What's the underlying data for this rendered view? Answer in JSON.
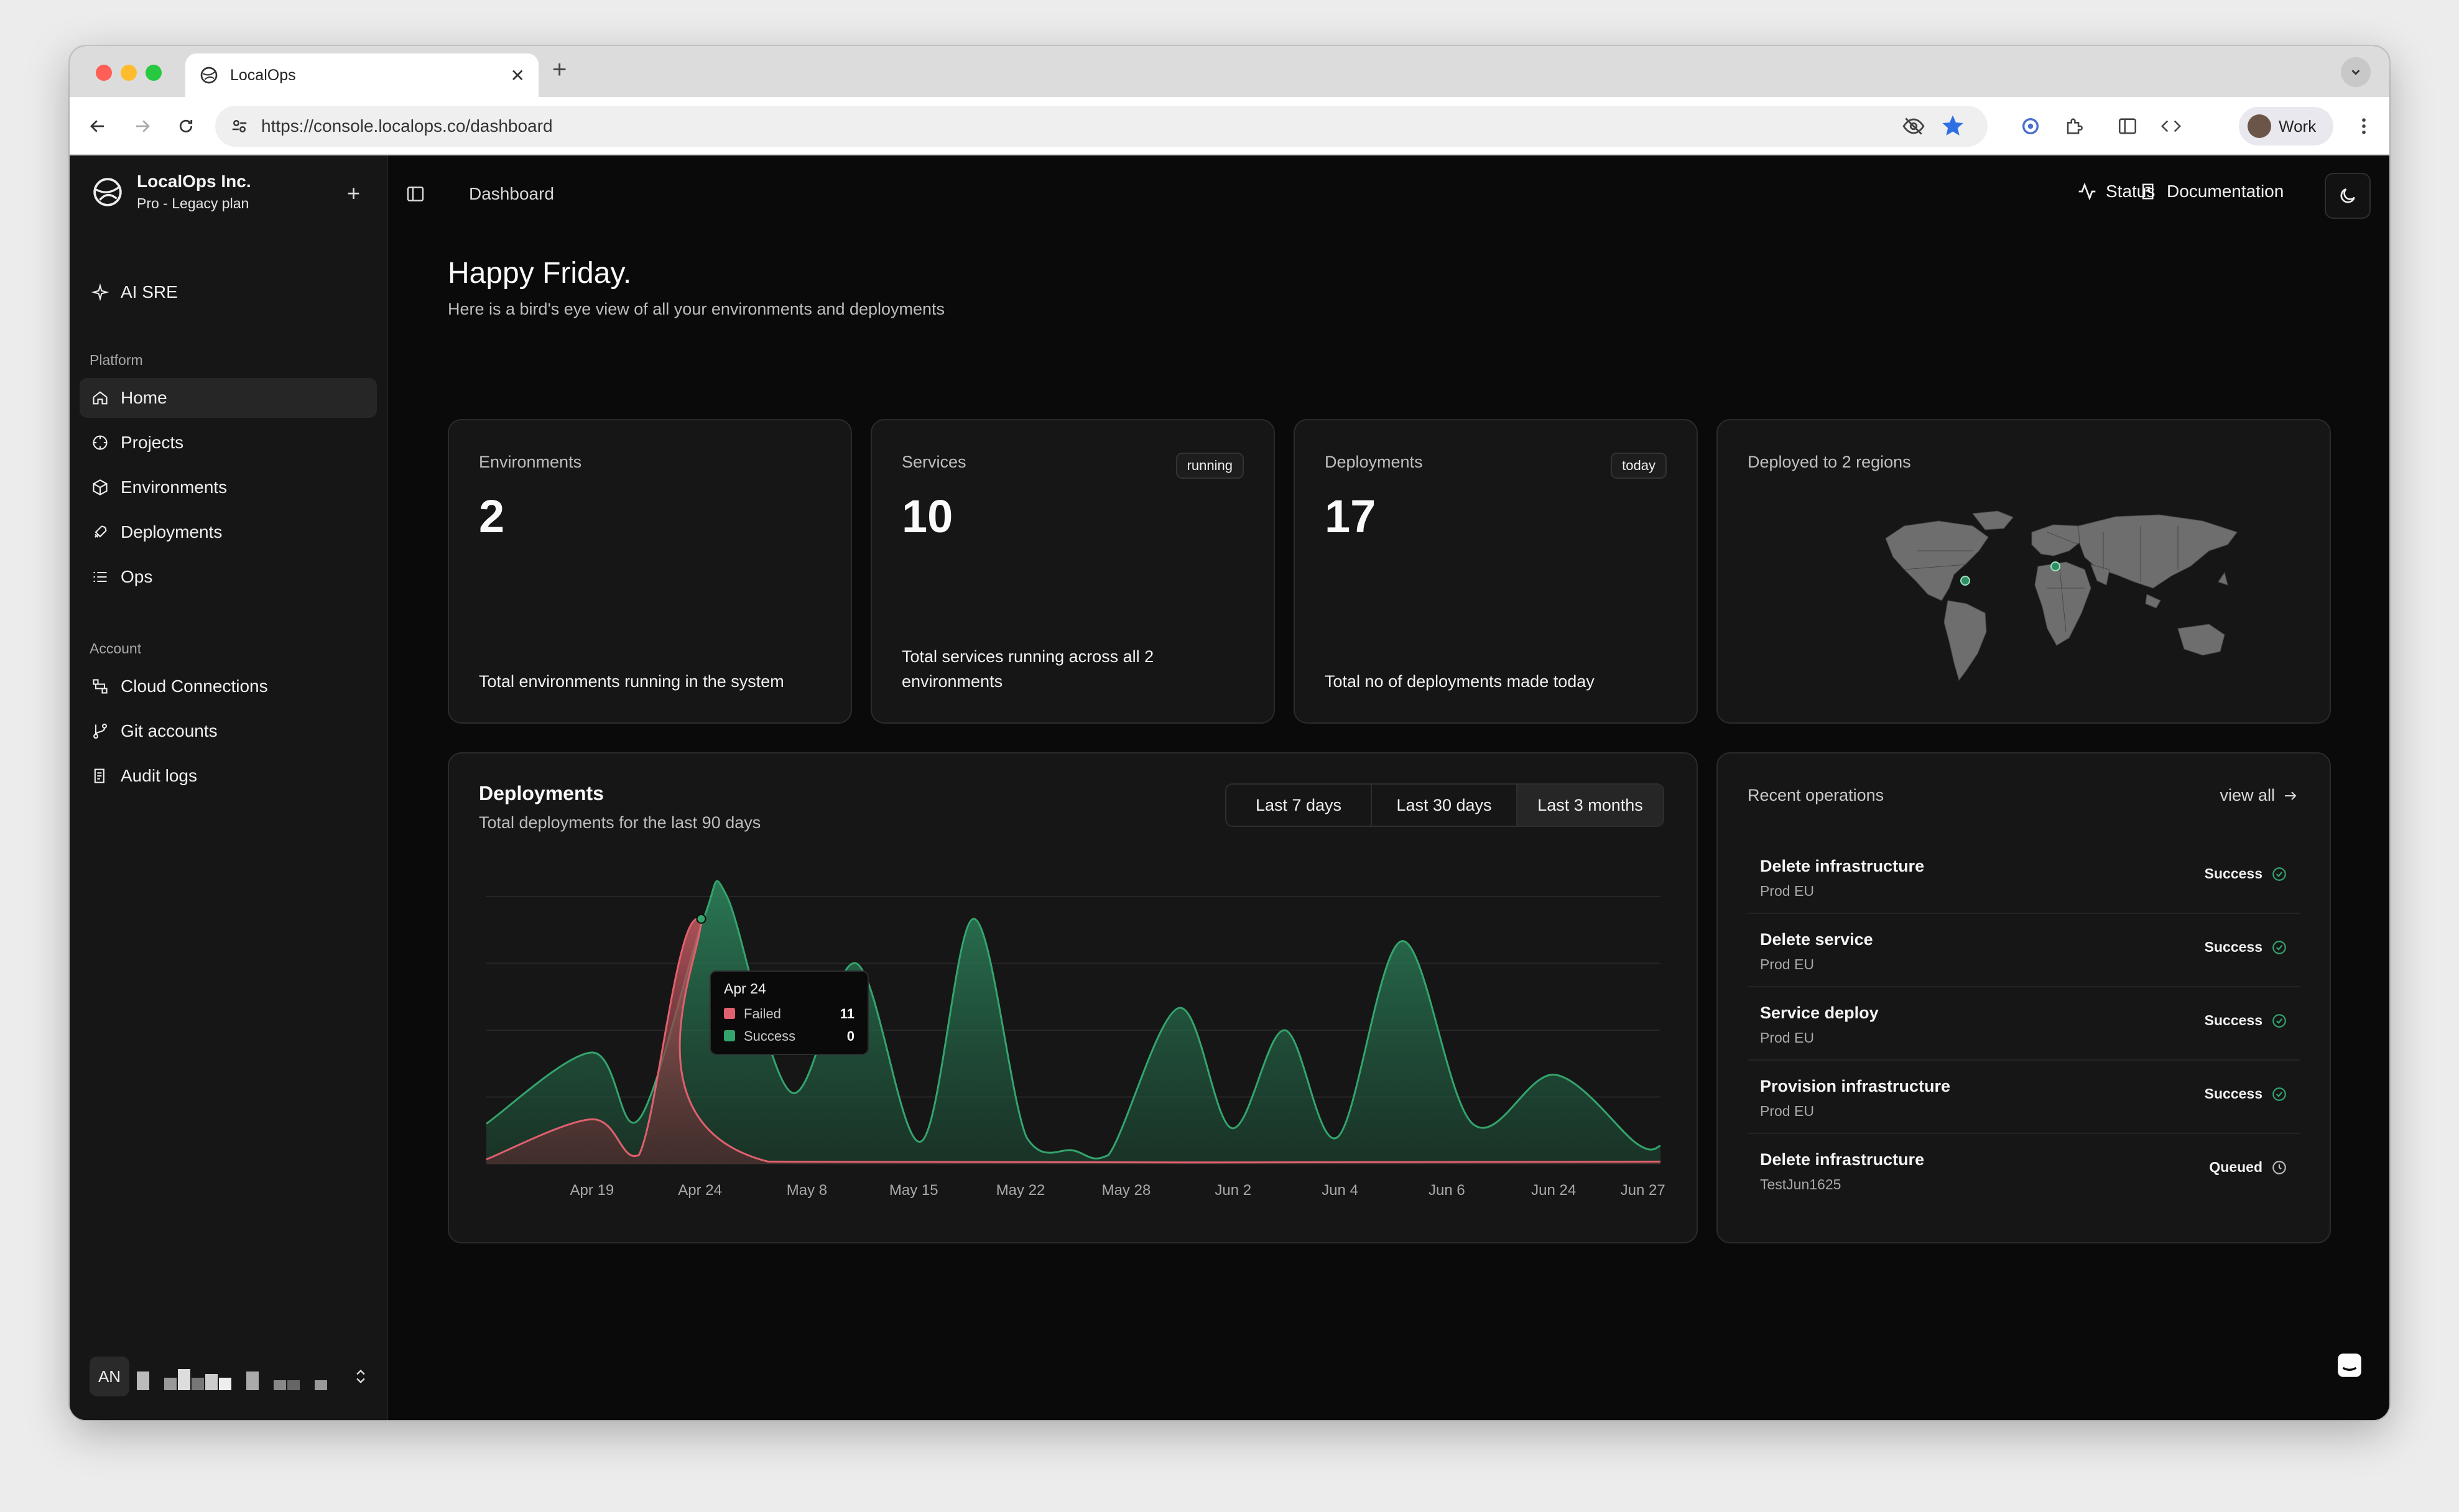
{
  "browser": {
    "tab_title": "LocalOps",
    "url": "https://console.localops.co/dashboard",
    "profile_label": "Work",
    "icons": [
      "back-icon",
      "forward-icon",
      "reload-icon",
      "site-info-icon",
      "eye-off-icon",
      "star-icon",
      "extension-icon",
      "puzzle-icon",
      "sidebar-icon",
      "code-icon",
      "kebab-menu-icon"
    ]
  },
  "sidebar": {
    "org_name": "LocalOps Inc.",
    "org_plan": "Pro - Legacy plan",
    "ai_label": "AI SRE",
    "platform_label": "Platform",
    "platform_items": [
      {
        "label": "Home",
        "icon": "home-icon"
      },
      {
        "label": "Projects",
        "icon": "projects-icon"
      },
      {
        "label": "Environments",
        "icon": "box-icon"
      },
      {
        "label": "Deployments",
        "icon": "rocket-icon"
      },
      {
        "label": "Ops",
        "icon": "list-icon"
      }
    ],
    "account_label": "Account",
    "account_items": [
      {
        "label": "Cloud Connections",
        "icon": "cloud-connection-icon"
      },
      {
        "label": "Git accounts",
        "icon": "git-branch-icon"
      },
      {
        "label": "Audit logs",
        "icon": "logs-icon"
      }
    ],
    "user_initials": "AN"
  },
  "header": {
    "breadcrumb": "Dashboard",
    "status_label": "Status",
    "docs_label": "Documentation"
  },
  "main": {
    "greeting": "Happy Friday.",
    "subtitle": "Here is a bird's eye view of all your environments and deployments",
    "cards": {
      "environments": {
        "label": "Environments",
        "value": "2",
        "desc": "Total environments running in the system"
      },
      "services": {
        "label": "Services",
        "badge": "running",
        "value": "10",
        "desc": "Total services running across all 2 environments"
      },
      "deployments": {
        "label": "Deployments",
        "badge": "today",
        "value": "17",
        "desc": "Total no of deployments made today"
      },
      "regions": {
        "label": "Deployed to 2 regions"
      }
    },
    "chart_card": {
      "title": "Deployments",
      "subtitle": "Total deployments for the last 90 days",
      "ranges": [
        "Last 7 days",
        "Last 30 days",
        "Last 3 months"
      ],
      "selected_range": "Last 3 months"
    },
    "operations": {
      "title": "Recent operations",
      "view_all": "view all",
      "items": [
        {
          "name": "Delete infrastructure",
          "env": "Prod EU",
          "status": "Success"
        },
        {
          "name": "Delete service",
          "env": "Prod EU",
          "status": "Success"
        },
        {
          "name": "Service deploy",
          "env": "Prod EU",
          "status": "Success"
        },
        {
          "name": "Provision infrastructure",
          "env": "Prod EU",
          "status": "Success"
        },
        {
          "name": "Delete infrastructure",
          "env": "TestJun1625",
          "status": "Queued"
        }
      ]
    }
  },
  "colors": {
    "success": "#34a46d",
    "failed": "#e0606e",
    "accent": "#4a8cf7"
  },
  "chart_data": {
    "type": "area",
    "title": "Deployments",
    "subtitle": "Total deployments for the last 90 days",
    "x_ticks": [
      "Apr 19",
      "Apr 24",
      "May 8",
      "May 15",
      "May 22",
      "May 28",
      "Jun 2",
      "Jun 4",
      "Jun 6",
      "Jun 24",
      "Jun 27"
    ],
    "ylim": [
      0,
      12
    ],
    "grid": true,
    "series": [
      {
        "name": "Success",
        "color": "#34a46d",
        "points": [
          [
            0,
            1.8
          ],
          [
            0.09,
            5
          ],
          [
            0.13,
            2
          ],
          [
            0.185,
            11
          ],
          [
            0.205,
            12
          ],
          [
            0.26,
            3.2
          ],
          [
            0.315,
            9
          ],
          [
            0.37,
            1
          ],
          [
            0.415,
            11
          ],
          [
            0.46,
            1.2
          ],
          [
            0.5,
            0.6
          ],
          [
            0.53,
            0.4
          ],
          [
            0.59,
            7
          ],
          [
            0.635,
            1.6
          ],
          [
            0.68,
            6
          ],
          [
            0.725,
            1.2
          ],
          [
            0.78,
            10
          ],
          [
            0.84,
            1.8
          ],
          [
            0.91,
            4
          ],
          [
            0.98,
            0.9
          ],
          [
            1,
            0.8
          ]
        ]
      },
      {
        "name": "Failed",
        "color": "#e0606e",
        "points": [
          [
            0,
            0.2
          ],
          [
            0.09,
            2
          ],
          [
            0.13,
            0.4
          ],
          [
            0.18,
            11
          ],
          [
            0.24,
            0.1
          ],
          [
            1,
            0.1
          ]
        ]
      }
    ],
    "tooltip": {
      "date": "Apr 24",
      "rows": [
        {
          "name": "Failed",
          "value": "11"
        },
        {
          "name": "Success",
          "value": "0"
        }
      ]
    }
  }
}
